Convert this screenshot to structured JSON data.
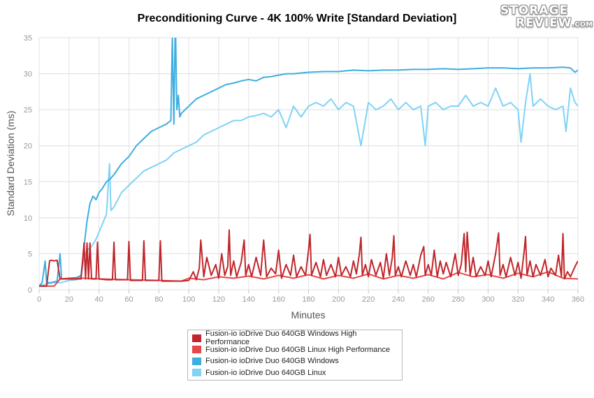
{
  "chart_data": {
    "type": "line",
    "title": "Preconditioning Curve - 4K 100% Write [Standard Deviation]",
    "xlabel": "Minutes",
    "ylabel": "Standard Deviation (ms)",
    "xlim": [
      0,
      360
    ],
    "ylim": [
      0,
      35
    ],
    "xticks": [
      0,
      20,
      40,
      60,
      80,
      100,
      120,
      140,
      160,
      180,
      200,
      220,
      240,
      260,
      280,
      300,
      320,
      340,
      360
    ],
    "yticks": [
      0,
      5,
      10,
      15,
      20,
      25,
      30,
      35
    ],
    "grid": true,
    "legend_position": "bottom",
    "series": [
      {
        "name": "Fusion-io ioDrive Duo 640GB Windows High Performance",
        "color": "#c0262b",
        "x": [
          0,
          5,
          7,
          8,
          10,
          12,
          14,
          20,
          28,
          30,
          31,
          32,
          33,
          34,
          35,
          38,
          39,
          40,
          45,
          49,
          50,
          51,
          55,
          59,
          60,
          61,
          65,
          69,
          70,
          71,
          75,
          80,
          81,
          82,
          90,
          95,
          100,
          103,
          105,
          107,
          108,
          110,
          112,
          115,
          118,
          120,
          122,
          124,
          126,
          127,
          128,
          130,
          132,
          135,
          137,
          138,
          140,
          142,
          145,
          148,
          150,
          152,
          155,
          158,
          160,
          162,
          165,
          168,
          170,
          172,
          175,
          178,
          180,
          181,
          182,
          185,
          188,
          190,
          192,
          195,
          198,
          200,
          202,
          205,
          208,
          210,
          212,
          214,
          215,
          216,
          218,
          220,
          222,
          225,
          228,
          230,
          232,
          234,
          236,
          237,
          238,
          240,
          242,
          245,
          248,
          250,
          252,
          255,
          257,
          258,
          260,
          262,
          264,
          266,
          268,
          270,
          272,
          275,
          278,
          280,
          282,
          284,
          285,
          286,
          288,
          290,
          292,
          295,
          298,
          300,
          302,
          305,
          307,
          308,
          310,
          312,
          315,
          318,
          320,
          322,
          324,
          325,
          326,
          328,
          330,
          332,
          335,
          338,
          340,
          342,
          345,
          347,
          349,
          350,
          351,
          353,
          355,
          358,
          360
        ],
        "y": [
          0.5,
          0.5,
          4.0,
          4.1,
          4.0,
          4.1,
          1.5,
          1.5,
          1.5,
          6.5,
          1.5,
          6.5,
          1.5,
          6.5,
          1.5,
          1.5,
          6.6,
          1.5,
          1.4,
          1.4,
          6.6,
          1.4,
          1.4,
          1.4,
          6.7,
          1.3,
          1.3,
          1.3,
          6.8,
          1.3,
          1.3,
          1.3,
          6.8,
          1.2,
          1.2,
          1.2,
          1.3,
          2.5,
          1.4,
          3.0,
          6.9,
          1.8,
          4.5,
          2.0,
          3.5,
          1.6,
          5.0,
          2.0,
          3.2,
          8.3,
          2.0,
          4.0,
          1.8,
          3.8,
          6.9,
          2.0,
          3.5,
          1.8,
          4.5,
          2.0,
          6.9,
          1.8,
          3.0,
          2.2,
          5.5,
          1.6,
          3.5,
          2.0,
          4.8,
          1.8,
          3.2,
          2.0,
          5.5,
          7.7,
          2.0,
          3.8,
          1.8,
          4.2,
          2.0,
          3.5,
          1.8,
          4.5,
          2.0,
          3.2,
          1.8,
          4.0,
          2.2,
          5.0,
          7.3,
          2.0,
          3.5,
          1.8,
          4.2,
          2.0,
          3.8,
          1.6,
          5.0,
          2.0,
          4.5,
          7.5,
          2.0,
          3.2,
          1.8,
          4.0,
          2.0,
          3.5,
          1.8,
          4.8,
          6.0,
          2.0,
          3.5,
          2.0,
          5.5,
          1.8,
          4.0,
          2.2,
          3.8,
          1.8,
          5.0,
          2.0,
          3.5,
          7.8,
          2.5,
          8.0,
          2.0,
          4.5,
          1.8,
          3.2,
          2.0,
          4.0,
          1.8,
          5.0,
          7.9,
          2.0,
          3.5,
          1.8,
          4.5,
          2.0,
          3.8,
          1.6,
          5.2,
          7.4,
          2.0,
          4.0,
          1.8,
          3.5,
          2.0,
          4.2,
          1.8,
          3.0,
          2.0,
          4.8,
          1.8,
          7.8,
          1.5,
          2.5,
          1.8,
          3.2,
          4.0
        ]
      },
      {
        "name": "Fusion-io ioDrive Duo 640GB Linux High Performance",
        "color": "#e8474a",
        "x": [
          0,
          10,
          14,
          20,
          30,
          40,
          60,
          80,
          95,
          100,
          110,
          120,
          130,
          140,
          150,
          160,
          170,
          180,
          190,
          200,
          210,
          220,
          230,
          240,
          250,
          260,
          270,
          280,
          290,
          300,
          310,
          320,
          330,
          340,
          350,
          360
        ],
        "y": [
          0.5,
          0.5,
          1.5,
          1.6,
          1.6,
          1.5,
          1.4,
          1.3,
          1.2,
          1.6,
          1.4,
          1.8,
          1.6,
          1.9,
          1.5,
          2.0,
          1.6,
          2.1,
          1.5,
          2.0,
          1.6,
          2.2,
          1.5,
          2.0,
          1.6,
          2.1,
          1.5,
          2.4,
          1.8,
          2.1,
          1.6,
          2.3,
          1.8,
          2.5,
          1.6,
          1.5
        ]
      },
      {
        "name": "Fusion-io ioDrive Duo 640GB Windows",
        "color": "#3daee0",
        "x": [
          0,
          2,
          4,
          5,
          8,
          12,
          14,
          15,
          20,
          25,
          28,
          30,
          32,
          34,
          36,
          38,
          40,
          42,
          45,
          48,
          50,
          55,
          60,
          65,
          70,
          75,
          80,
          85,
          88,
          89,
          90,
          91,
          92,
          93,
          94,
          95,
          100,
          105,
          110,
          115,
          120,
          125,
          130,
          135,
          140,
          145,
          150,
          155,
          160,
          165,
          170,
          180,
          190,
          200,
          210,
          220,
          230,
          240,
          250,
          260,
          270,
          280,
          290,
          300,
          310,
          320,
          330,
          340,
          350,
          355,
          358,
          360
        ],
        "y": [
          0.5,
          1.0,
          4.0,
          1.0,
          1.0,
          1.2,
          5.0,
          1.5,
          1.6,
          1.7,
          2.0,
          6.0,
          9.5,
          12.0,
          13.0,
          12.5,
          13.5,
          14.0,
          15.0,
          15.5,
          16.0,
          17.5,
          18.5,
          20.0,
          21.0,
          22.0,
          22.5,
          23.0,
          23.5,
          35.0,
          23.0,
          38.0,
          25.0,
          27.0,
          24.0,
          24.5,
          25.5,
          26.5,
          27.0,
          27.5,
          28.0,
          28.5,
          28.7,
          29.0,
          29.2,
          29.0,
          29.5,
          29.6,
          29.8,
          30.0,
          30.0,
          30.2,
          30.3,
          30.3,
          30.5,
          30.4,
          30.5,
          30.5,
          30.6,
          30.6,
          30.7,
          30.6,
          30.7,
          30.8,
          30.8,
          30.7,
          30.8,
          30.8,
          30.9,
          30.8,
          30.2,
          30.5
        ]
      },
      {
        "name": "Fusion-io ioDrive Duo 640GB Linux",
        "color": "#7fd3f5",
        "x": [
          0,
          5,
          10,
          15,
          20,
          25,
          28,
          30,
          32,
          35,
          38,
          40,
          42,
          45,
          47,
          48,
          50,
          55,
          60,
          65,
          70,
          75,
          80,
          85,
          90,
          95,
          100,
          105,
          110,
          115,
          120,
          125,
          130,
          135,
          140,
          145,
          150,
          155,
          160,
          165,
          170,
          175,
          180,
          185,
          190,
          195,
          200,
          205,
          210,
          215,
          220,
          225,
          230,
          235,
          240,
          245,
          250,
          255,
          258,
          260,
          265,
          270,
          275,
          280,
          285,
          290,
          295,
          300,
          305,
          310,
          315,
          320,
          322,
          325,
          328,
          330,
          335,
          340,
          345,
          350,
          352,
          355,
          358,
          360
        ],
        "y": [
          0.5,
          0.8,
          1.0,
          1.0,
          1.3,
          1.4,
          2.0,
          4.5,
          5.5,
          6.0,
          7.0,
          8.0,
          9.0,
          10.5,
          17.5,
          11.0,
          11.5,
          13.5,
          14.5,
          15.5,
          16.5,
          17.0,
          17.5,
          18.0,
          19.0,
          19.5,
          20.0,
          20.5,
          21.5,
          22.0,
          22.5,
          23.0,
          23.5,
          23.5,
          24.0,
          24.2,
          24.5,
          24.0,
          25.0,
          22.5,
          25.5,
          24.0,
          25.5,
          26.0,
          25.5,
          26.5,
          25.0,
          26.0,
          25.5,
          20.0,
          26.0,
          25.0,
          25.5,
          26.5,
          25.0,
          26.0,
          25.0,
          25.5,
          20.0,
          25.5,
          26.0,
          25.0,
          25.5,
          25.5,
          27.0,
          25.5,
          26.0,
          25.5,
          28.0,
          25.5,
          26.0,
          25.0,
          20.5,
          26.0,
          30.0,
          25.5,
          26.5,
          25.5,
          25.0,
          25.5,
          22.0,
          28.0,
          26.0,
          25.5
        ]
      }
    ]
  },
  "logo": {
    "line1": "STORAGE",
    "line2": "REVIEW",
    "line2_suffix": ".COM"
  }
}
